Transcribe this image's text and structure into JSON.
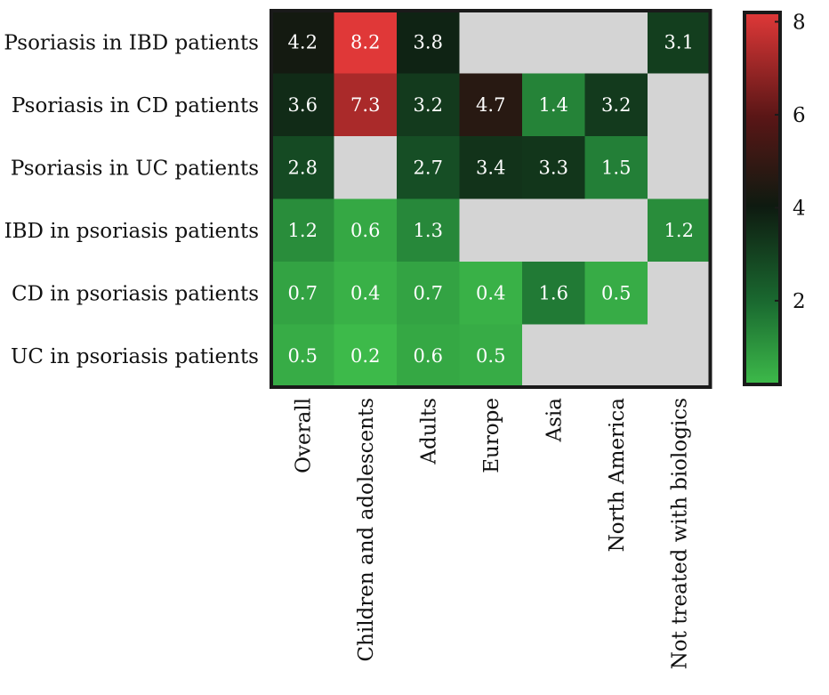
{
  "chart_data": {
    "type": "heatmap",
    "title": "",
    "xlabel": "",
    "ylabel": "",
    "rows": [
      "Psoriasis in IBD patients",
      "Psoriasis in CD patients",
      "Psoriasis in UC patients",
      "IBD in psoriasis patients",
      "CD in psoriasis patients",
      "UC in psoriasis patients"
    ],
    "columns": [
      "Overall",
      "Children and adolescents",
      "Adults",
      "Europe",
      "Asia",
      "North America",
      "Not treated with biologics"
    ],
    "values": [
      [
        4.2,
        8.2,
        3.8,
        null,
        null,
        null,
        3.1
      ],
      [
        3.6,
        7.3,
        3.2,
        4.7,
        1.4,
        3.2,
        null
      ],
      [
        2.8,
        null,
        2.7,
        3.4,
        3.3,
        1.5,
        null
      ],
      [
        1.2,
        0.6,
        1.3,
        null,
        null,
        null,
        1.2
      ],
      [
        0.7,
        0.4,
        0.7,
        0.4,
        1.6,
        0.5,
        null
      ],
      [
        0.5,
        0.2,
        0.6,
        0.5,
        null,
        null,
        null
      ]
    ],
    "missing_color": "#d4d4d4",
    "colorbar": {
      "range": [
        0.2,
        8.2
      ],
      "ticks": [
        2,
        4,
        6,
        8
      ],
      "tick_labels": [
        "2",
        "4",
        "6",
        "8"
      ],
      "colors": {
        "low": "#3dba4a",
        "mid_low": "#1a6a30",
        "mid": "#0e1a10",
        "mid_high": "#5a1616",
        "high": "#e03838"
      }
    },
    "grid": false,
    "legend": "colorbar at right"
  }
}
